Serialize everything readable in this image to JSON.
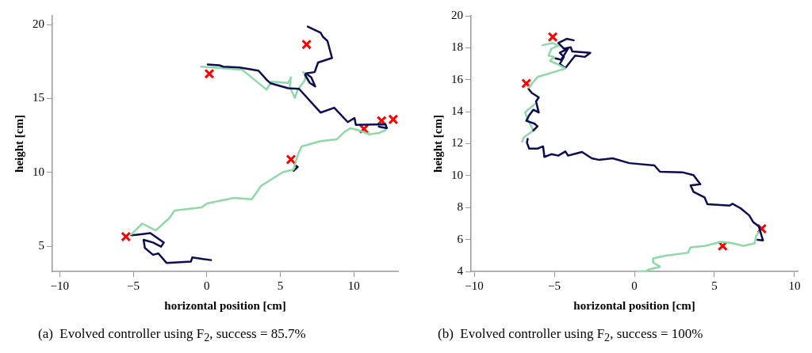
{
  "chart_data": [
    {
      "type": "line",
      "xlabel": "horizontal position [cm]",
      "ylabel": "height [cm]",
      "xlim": [
        -10.5,
        13
      ],
      "ylim": [
        3.3,
        20.6
      ],
      "xticks": [
        -10,
        -5,
        0,
        5,
        10
      ],
      "yticks": [
        5,
        10,
        15,
        20
      ],
      "annotations": [
        "(a)  Evolved controller using F$_{2}$, success = 85.7%"
      ],
      "series": [
        {
          "type": "line",
          "color": "#0d0d52",
          "x": [
            6.86,
            7.74,
            7.89,
            8.2,
            8.51,
            7.56,
            7.33,
            6.73,
            7.1,
            7.37,
            7.0,
            6.67
          ],
          "values": [
            19.87,
            19.45,
            19.18,
            18.9,
            17.75,
            17.44,
            16.79,
            16.7,
            16.43,
            15.82,
            16.06,
            16.61
          ]
        },
        {
          "type": "line",
          "color": "#0d0d52",
          "x": [
            0.06,
            0.85,
            1.12,
            2.22,
            3.51,
            4.06,
            4.34,
            5.53,
            6.27,
            7.74,
            8.66,
            9.58,
            10.04,
            10.13,
            12.15,
            12.24,
            11.69
          ],
          "values": [
            17.31,
            17.25,
            17.16,
            17.11,
            16.89,
            16.28,
            16.03,
            15.7,
            15.66,
            14.05,
            14.38,
            13.41,
            13.68,
            13.22,
            13.26,
            13.0,
            13.1
          ]
        },
        {
          "type": "line",
          "color": "#8ed9a8",
          "x": [
            -0.39,
            0.94,
            2.41,
            3.05,
            4.06,
            4.39,
            5.53,
            5.72,
            5.63,
            5.99,
            6.18,
            6.64,
            6.73,
            6.54
          ],
          "values": [
            17.16,
            17.07,
            16.94,
            16.43,
            15.6,
            16.14,
            16.06,
            16.43,
            15.79,
            15.05,
            15.6,
            16.21,
            16.61,
            16.79
          ]
        },
        {
          "type": "line",
          "color": "#8ed9a8",
          "x": [
            12.15,
            11.69,
            11.05,
            10.31,
            9.76,
            9.39,
            8.84,
            7.74,
            6.45,
            6.23,
            6.08,
            5.9,
            5.17,
            3.69,
            3.05,
            1.86,
            0.02,
            -0.35,
            -2.19,
            -2.56,
            -3.47,
            -4.39,
            -5.13
          ],
          "values": [
            12.86,
            12.67,
            12.58,
            12.86,
            12.99,
            12.77,
            12.25,
            12.12,
            11.76,
            11.3,
            10.84,
            10.2,
            10.02,
            9.1,
            8.19,
            8.28,
            7.91,
            7.64,
            7.42,
            6.9,
            6.08,
            6.54,
            5.81
          ]
        },
        {
          "type": "line",
          "color": "#0d0d52",
          "x": [
            5.99,
            6.18,
            5.9
          ],
          "values": [
            10.48,
            10.38,
            10.11
          ]
        },
        {
          "type": "line",
          "color": "#0d0d52",
          "x": [
            -5.13,
            -4.58,
            -3.84,
            -2.92,
            -3.11,
            -3.66,
            -4.3,
            -4.21,
            -3.66,
            -3.29,
            -2.74,
            -1.08,
            -0.99,
            0.29
          ],
          "values": [
            5.75,
            5.81,
            5.9,
            5.26,
            4.98,
            5.26,
            5.44,
            4.89,
            4.43,
            4.52,
            3.88,
            3.97,
            4.25,
            4.07
          ]
        },
        {
          "type": "scatter",
          "marker": "cross",
          "color": "#ff0000",
          "x": [
            6.78,
            0.17,
            10.68,
            11.88,
            12.67,
            5.72,
            -5.5
          ],
          "values": [
            18.66,
            16.68,
            12.95,
            13.5,
            13.59,
            10.88,
            5.66
          ]
        }
      ]
    },
    {
      "type": "line",
      "xlabel": "horizontal position [cm]",
      "ylabel": "height [cm]",
      "xlim": [
        -10.2,
        10.2
      ],
      "ylim": [
        4,
        20
      ],
      "xticks": [
        -10,
        -5,
        0,
        5,
        10
      ],
      "yticks": [
        4,
        6,
        8,
        10,
        12,
        14,
        16,
        18,
        20
      ],
      "annotations": [
        "(b)  Evolved controller using F$_{2}$, success = 100%"
      ],
      "series": [
        {
          "type": "line",
          "color": "#8ed9a8",
          "x": [
            -5.74,
            -5.1,
            -4.75,
            -5.18,
            -5.36,
            -5.01,
            -5.27,
            -4.83,
            -4.31,
            -6.05,
            -6.61
          ],
          "values": [
            18.16,
            18.3,
            18.12,
            17.95,
            17.51,
            17.43,
            17.17,
            16.99,
            16.7,
            16.17,
            15.51
          ]
        },
        {
          "type": "line",
          "color": "#0d0d52",
          "x": [
            -3.79,
            -4.23,
            -4.75,
            -4.4,
            -3.97,
            -3.88,
            -2.75,
            -3.1,
            -3.7,
            -4.31,
            -4.66,
            -4.4,
            -4.66,
            -4.14,
            -4.57,
            -4.92
          ],
          "values": [
            18.47,
            18.56,
            18.3,
            17.95,
            18.03,
            17.77,
            17.69,
            17.43,
            17.51,
            16.73,
            16.99,
            17.43,
            17.69,
            17.95,
            17.25,
            17.34
          ]
        },
        {
          "type": "line",
          "color": "#0d0d52",
          "x": [
            -6.61,
            -6.4,
            -5.97,
            -6.14,
            -5.97,
            -6.31,
            -6.57,
            -6.75,
            -6.23,
            -6.05,
            -6.31
          ],
          "values": [
            15.43,
            15.17,
            14.9,
            14.64,
            13.95,
            14.12,
            13.77,
            13.43,
            13.25,
            13.08,
            12.82
          ]
        },
        {
          "type": "line",
          "color": "#8ed9a8",
          "x": [
            -6.23,
            -6.83,
            -6.57,
            -6.31,
            -6.92,
            -7.01
          ],
          "values": [
            14.47,
            13.95,
            13.34,
            12.82,
            12.38,
            12.12
          ]
        },
        {
          "type": "line",
          "color": "#0d0d52",
          "x": [
            -6.66,
            -6.71,
            -6.57,
            -6.05,
            -5.7,
            -5.62,
            -5.18,
            -4.75,
            -4.31,
            -4.14,
            -3.79,
            -3.27,
            -2.66,
            -2.23,
            -1.36,
            -0.31,
            1.25,
            1.6,
            2.99,
            3.69,
            4.12,
            3.51,
            3.69,
            4.38,
            4.56,
            5.95,
            6.12,
            6.64,
            7.17,
            7.43,
            7.77,
            7.95,
            8.03,
            7.69
          ],
          "values": [
            12.3,
            12.07,
            11.69,
            11.69,
            11.83,
            11.17,
            11.34,
            11.25,
            11.51,
            11.25,
            11.34,
            11.48,
            11.08,
            10.99,
            11.08,
            10.78,
            10.64,
            10.24,
            10.21,
            10.03,
            9.46,
            9.39,
            8.99,
            8.64,
            8.21,
            8.12,
            8.24,
            7.95,
            7.51,
            7.08,
            6.82,
            6.21,
            5.95,
            5.98
          ]
        },
        {
          "type": "line",
          "color": "#8ed9a8",
          "x": [
            7.77,
            7.6,
            7.51,
            6.82,
            6.12,
            5.43,
            4.38,
            3.51,
            3.34,
            1.95,
            1.17,
            1.17,
            1.6,
            0.9,
            0.73,
            0.21
          ],
          "values": [
            6.47,
            6.21,
            5.77,
            5.6,
            5.77,
            5.86,
            5.6,
            5.51,
            5.17,
            4.99,
            4.82,
            4.56,
            4.3,
            4.12,
            4.03,
            4.0
          ]
        },
        {
          "type": "scatter",
          "marker": "cross",
          "color": "#ff0000",
          "x": [
            -5.1,
            -6.75,
            7.95,
            5.51
          ],
          "values": [
            18.68,
            15.77,
            6.68,
            5.6
          ]
        }
      ]
    }
  ]
}
